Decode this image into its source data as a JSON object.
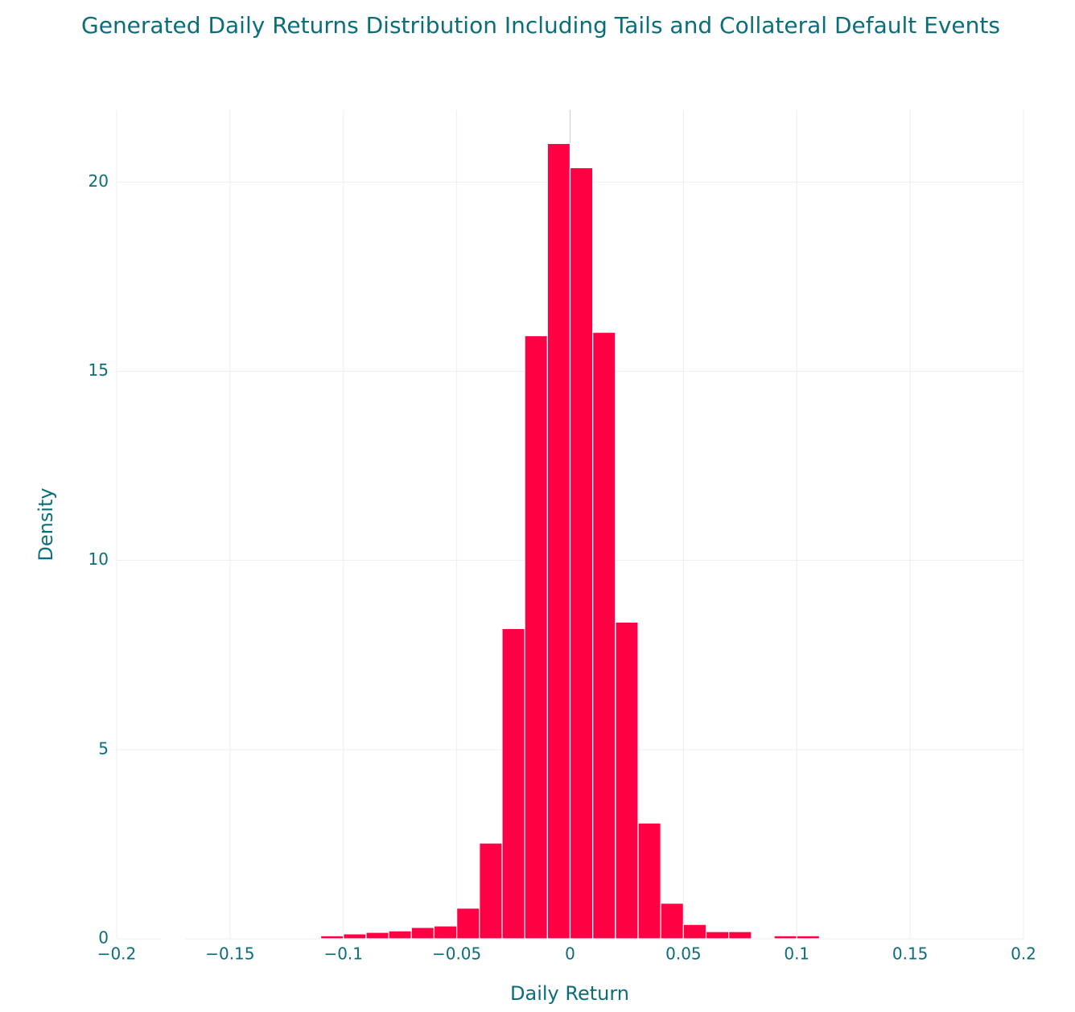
{
  "chart_data": {
    "type": "histogram",
    "title": "Generated Daily Returns Distribution Including Tails and Collateral Default Events",
    "x_label": "Daily Return",
    "y_label": "Density",
    "bins": [
      -0.18,
      -0.17,
      -0.16,
      -0.15,
      -0.14,
      -0.13,
      -0.12,
      -0.11,
      -0.1,
      -0.09,
      -0.08,
      -0.07,
      -0.06,
      -0.05,
      -0.04,
      -0.03,
      -0.02,
      -0.01,
      0,
      0.01,
      0.02,
      0.03,
      0.04,
      0.05,
      0.06,
      0.07,
      0.08,
      0.09,
      0.1,
      0.11
    ],
    "counts": [
      0.02,
      0,
      0,
      0,
      0,
      0,
      0,
      0.08,
      0.13,
      0.17,
      0.21,
      0.3,
      0.34,
      0.81,
      2.53,
      8.2,
      15.94,
      21.02,
      20.38,
      16.03,
      8.37,
      3.06,
      0.94,
      0.38,
      0.19,
      0.19,
      0,
      0.08,
      0.08
    ],
    "color": "#ff0044",
    "xlim": [
      -0.2,
      0.2
    ],
    "xticks": [
      {
        "value": -0.2,
        "label": "−0.2"
      },
      {
        "value": -0.15,
        "label": "−0.15"
      },
      {
        "value": -0.1,
        "label": "−0.1"
      },
      {
        "value": -0.05,
        "label": "−0.05"
      },
      0,
      0.05,
      0.1,
      0.15,
      0.2
    ],
    "ylim": [
      0,
      21.9
    ],
    "yticks": [
      0,
      5,
      10,
      15,
      20
    ],
    "grid": true
  }
}
